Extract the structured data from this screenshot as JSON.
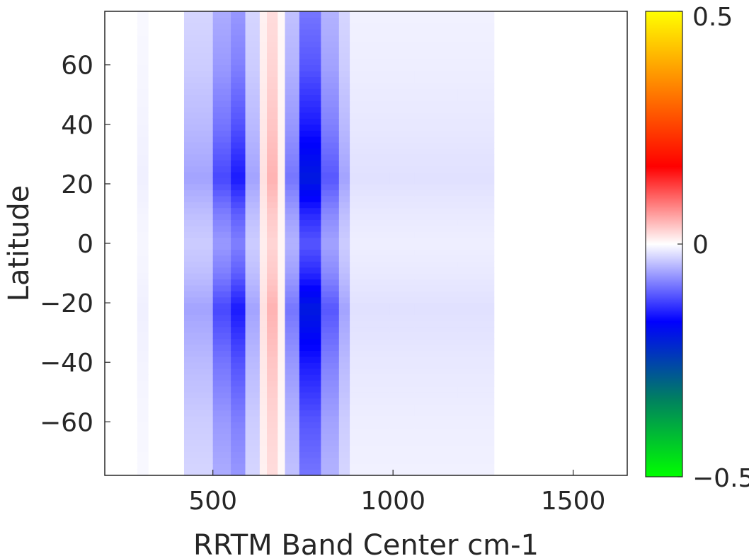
{
  "chart_data": {
    "type": "heatmap",
    "title": "",
    "xlabel": "RRTM Band Center cm-1",
    "ylabel": "Latitude",
    "xlim": [
      200,
      1650
    ],
    "ylim": [
      -78,
      78
    ],
    "xticks": [
      500,
      1000,
      1500
    ],
    "yticks": [
      60,
      40,
      20,
      0,
      -20,
      -40,
      -60
    ],
    "xtick_labels": [
      "500",
      "1000",
      "1500"
    ],
    "ytick_labels": [
      "60",
      "40",
      "20",
      "0",
      "−20",
      "−40",
      "−60"
    ],
    "colorbar": {
      "range": [
        -0.5,
        0.5
      ],
      "tick_labels": [
        "0.5",
        "0",
        "−0.5"
      ],
      "colormap": [
        "#00ff00",
        "#008060",
        "#0000ff",
        "#ffffff",
        "#ff0000",
        "#ff8000",
        "#ffff00"
      ]
    },
    "grid": false,
    "bands": [
      {
        "start": 200,
        "end": 290,
        "anomaly": 0.0
      },
      {
        "start": 290,
        "end": 320,
        "anomaly": -0.01
      },
      {
        "start": 320,
        "end": 420,
        "anomaly": 0.0
      },
      {
        "start": 420,
        "end": 500,
        "anomaly": -0.06
      },
      {
        "start": 500,
        "end": 550,
        "anomaly": -0.12
      },
      {
        "start": 550,
        "end": 590,
        "anomaly": -0.15
      },
      {
        "start": 590,
        "end": 630,
        "anomaly": -0.06
      },
      {
        "start": 630,
        "end": 650,
        "anomaly": 0.02
      },
      {
        "start": 650,
        "end": 680,
        "anomaly": 0.05
      },
      {
        "start": 680,
        "end": 700,
        "anomaly": 0.01
      },
      {
        "start": 700,
        "end": 740,
        "anomaly": -0.09
      },
      {
        "start": 740,
        "end": 800,
        "anomaly": -0.2
      },
      {
        "start": 800,
        "end": 850,
        "anomaly": -0.11
      },
      {
        "start": 850,
        "end": 880,
        "anomaly": -0.06
      },
      {
        "start": 880,
        "end": 990,
        "anomaly": -0.02
      },
      {
        "start": 990,
        "end": 1060,
        "anomaly": -0.02
      },
      {
        "start": 1060,
        "end": 1180,
        "anomaly": -0.02
      },
      {
        "start": 1180,
        "end": 1280,
        "anomaly": -0.02
      },
      {
        "start": 1280,
        "end": 1650,
        "anomaly": 0.0
      }
    ],
    "latitude_profile": {
      "latitudes": [
        -78,
        -60,
        -40,
        -22,
        -10,
        0,
        10,
        22,
        40,
        60,
        78
      ],
      "factors": [
        0.45,
        0.55,
        0.75,
        1.0,
        0.7,
        0.55,
        0.7,
        1.0,
        0.75,
        0.55,
        0.45
      ]
    }
  }
}
